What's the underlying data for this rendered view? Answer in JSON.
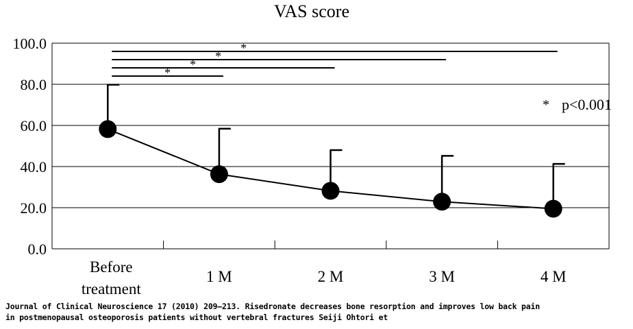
{
  "chart_data": {
    "type": "line",
    "title": "VAS score",
    "categories": [
      "Before treatment",
      "1 M",
      "2 M",
      "3 M",
      "4 M"
    ],
    "category_lines": [
      [
        "Before",
        "treatment"
      ],
      [
        "1 M"
      ],
      [
        "2 M"
      ],
      [
        "3 M"
      ],
      [
        "4 M"
      ]
    ],
    "series": [
      {
        "values": [
          58.2,
          36.3,
          28.2,
          22.9,
          19.5
        ],
        "error_upper": [
          79.8,
          58.4,
          48.0,
          45.2,
          41.3
        ]
      }
    ],
    "ylim": [
      0,
      100
    ],
    "yticks": [
      "0.0",
      "20.0",
      "40.0",
      "60.0",
      "80.0",
      "100.0"
    ],
    "ytick_values": [
      0,
      20,
      40,
      60,
      80,
      100
    ],
    "grid": true,
    "significance_brackets": [
      {
        "from": "Before treatment",
        "to": "1 M",
        "y": 84,
        "label": "*"
      },
      {
        "from": "Before treatment",
        "to": "2 M",
        "y": 88,
        "label": "*"
      },
      {
        "from": "Before treatment",
        "to": "3 M",
        "y": 92,
        "label": "*"
      },
      {
        "from": "Before treatment",
        "to": "4 M",
        "y": 96,
        "label": "*"
      }
    ],
    "annotation": {
      "symbol": "*",
      "text": "p<0.001"
    }
  },
  "caption": {
    "line1": "Journal of Clinical Neuroscience 17 (2010) 209–213. Risedronate decreases bone resorption and improves low back pain",
    "line2": "in postmenopausal osteoporosis patients without vertebral fractures Seiji Ohtori et"
  }
}
